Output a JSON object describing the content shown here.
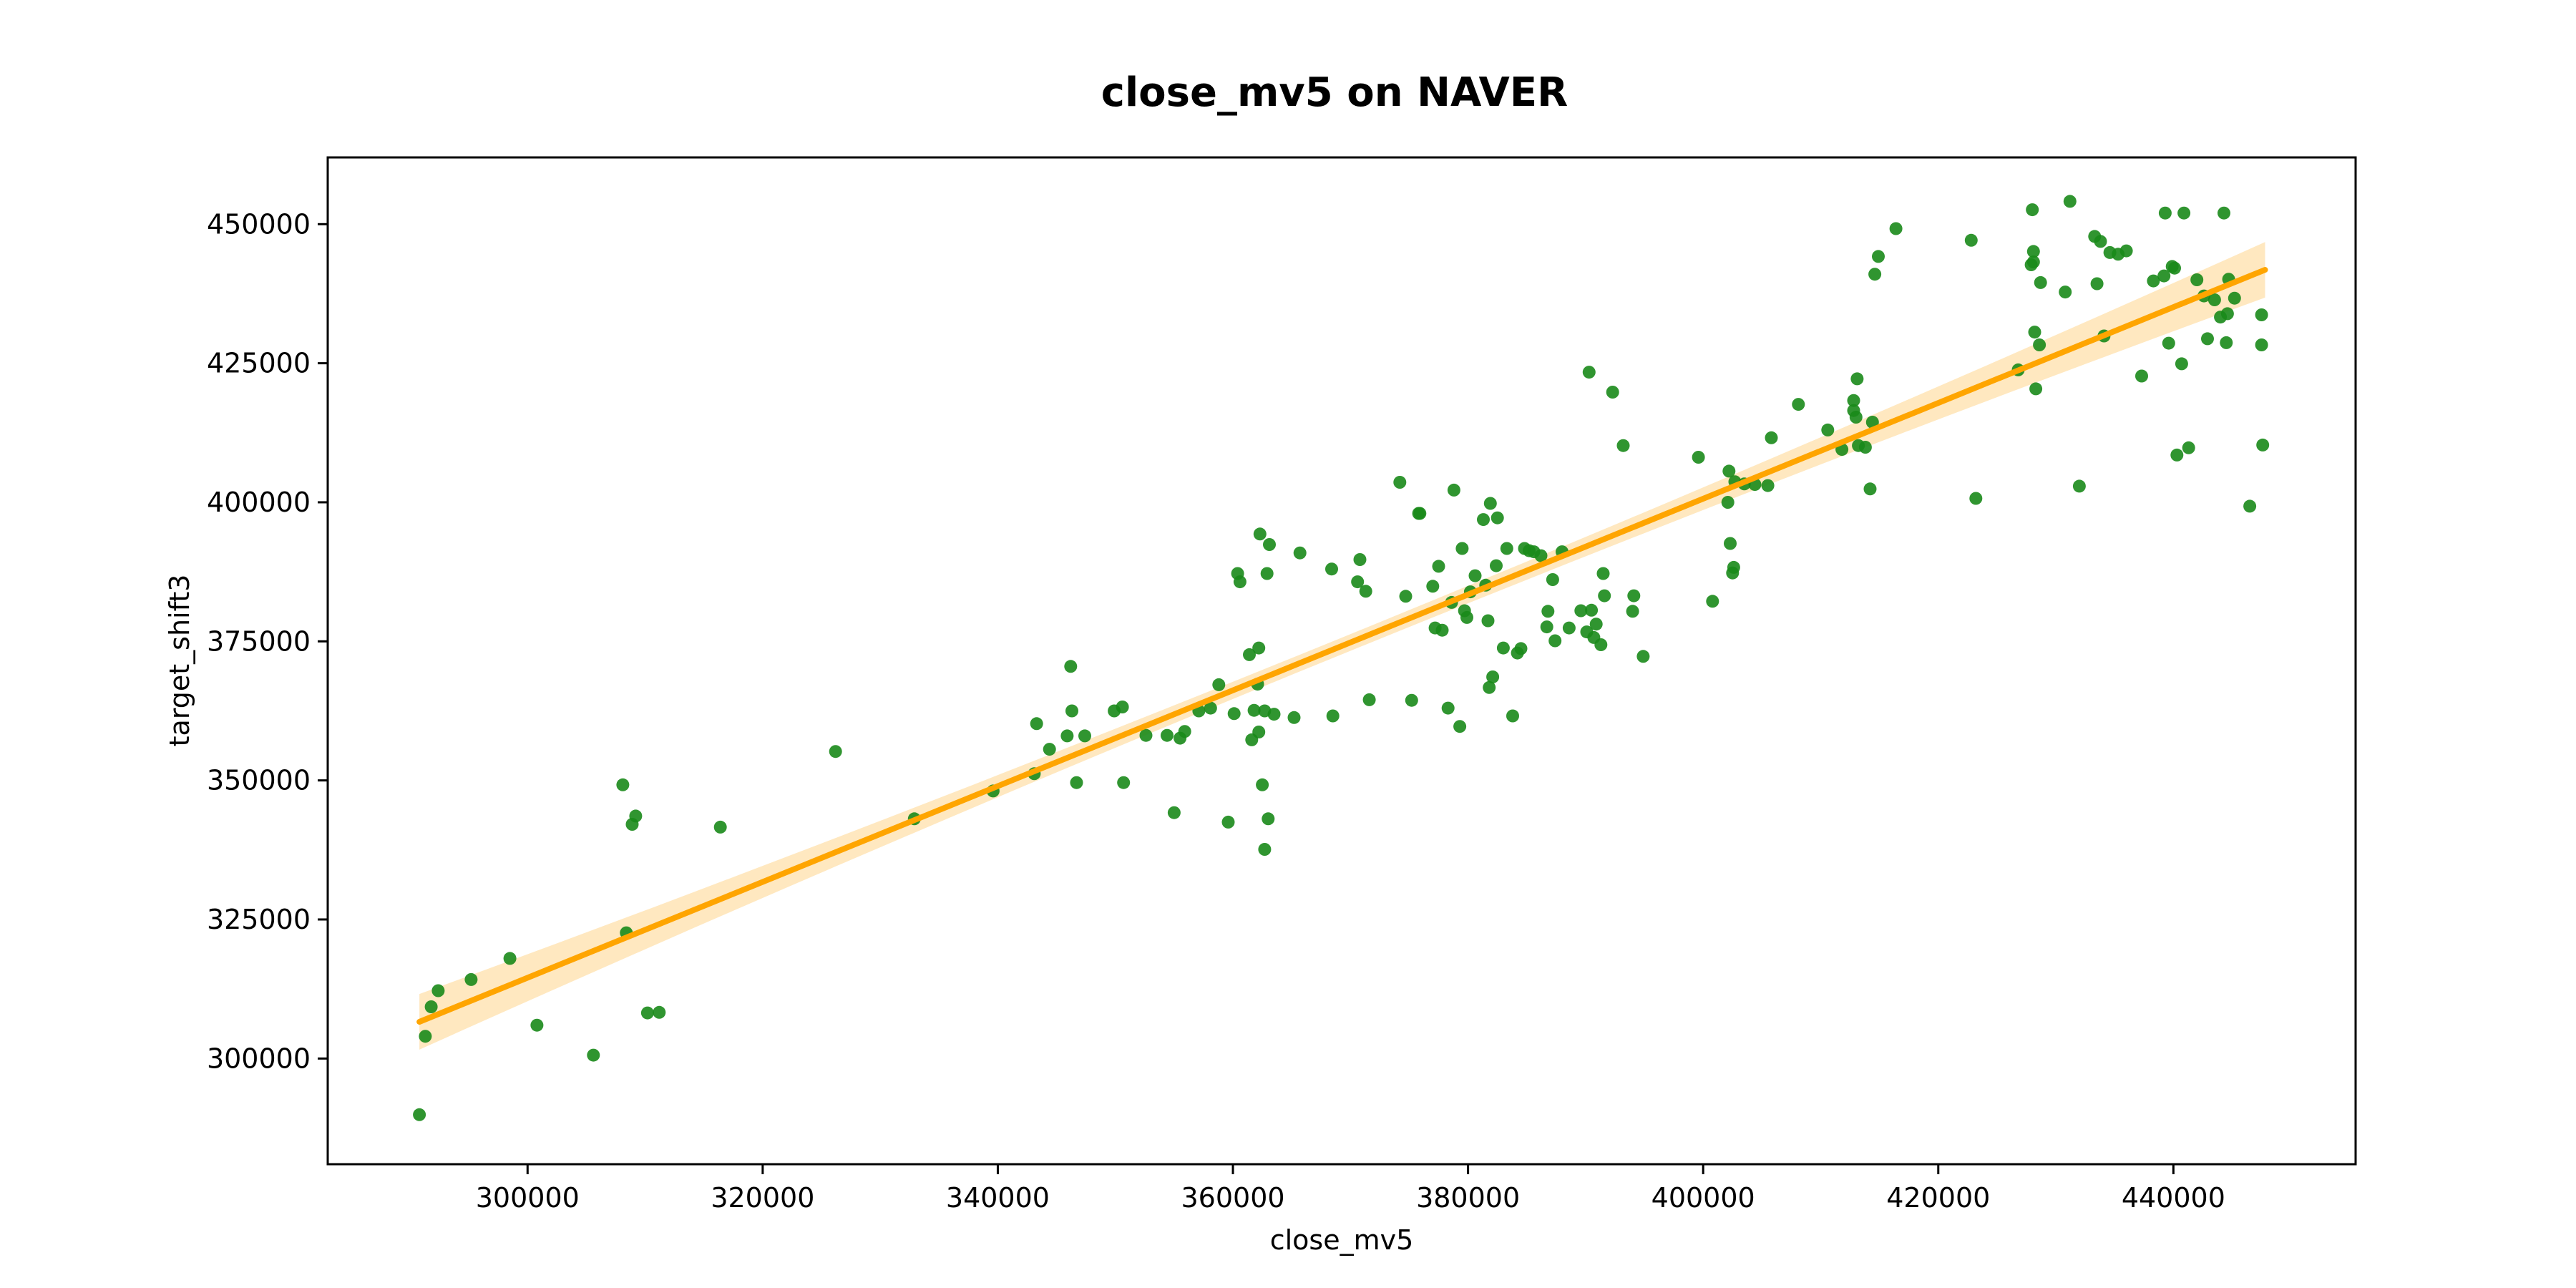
{
  "colors": {
    "points": "#1a8a1a",
    "regression_line": "#ffa500",
    "confidence_band": "#ffe2b0",
    "axes": "#000000",
    "background": "#ffffff"
  },
  "chart_data": {
    "type": "scatter",
    "title": "close_mv5 on NAVER",
    "xlabel": "close_mv5",
    "ylabel": "target_shift3",
    "xlim": [
      283000,
      455500
    ],
    "ylim": [
      281000,
      462000
    ],
    "xticks": [
      300000,
      320000,
      340000,
      360000,
      380000,
      400000,
      420000,
      440000
    ],
    "yticks": [
      300000,
      325000,
      350000,
      375000,
      400000,
      425000,
      450000
    ],
    "grid": false,
    "legend": "none",
    "regression": {
      "x_start": 290800,
      "y_start": 306600,
      "x_end": 447800,
      "y_end": 441800,
      "ci_half_width_ends": 5000,
      "ci_half_width_center": 1500
    },
    "series": [
      {
        "points": [
          [
            290800,
            289900
          ],
          [
            291300,
            304000
          ],
          [
            291800,
            309300
          ],
          [
            292400,
            312200
          ],
          [
            295200,
            314200
          ],
          [
            298500,
            318000
          ],
          [
            300800,
            306000
          ],
          [
            305600,
            300600
          ],
          [
            308100,
            349200
          ],
          [
            308400,
            322600
          ],
          [
            308900,
            342100
          ],
          [
            309200,
            343600
          ],
          [
            310200,
            308200
          ],
          [
            311200,
            308300
          ],
          [
            316400,
            341600
          ],
          [
            326200,
            355200
          ],
          [
            332900,
            343100
          ],
          [
            339600,
            348100
          ],
          [
            343100,
            351200
          ],
          [
            343300,
            360200
          ],
          [
            344400,
            355600
          ],
          [
            345900,
            358000
          ],
          [
            346200,
            370500
          ],
          [
            346300,
            362500
          ],
          [
            346700,
            349600
          ],
          [
            347400,
            358000
          ],
          [
            349900,
            362500
          ],
          [
            350600,
            363200
          ],
          [
            350700,
            349600
          ],
          [
            352600,
            358100
          ],
          [
            354400,
            358100
          ],
          [
            355000,
            344200
          ],
          [
            355500,
            357600
          ],
          [
            355900,
            358800
          ],
          [
            357100,
            362500
          ],
          [
            358100,
            363000
          ],
          [
            358800,
            367200
          ],
          [
            359600,
            342500
          ],
          [
            360100,
            362000
          ],
          [
            360400,
            387200
          ],
          [
            360600,
            385700
          ],
          [
            361400,
            372600
          ],
          [
            361600,
            357300
          ],
          [
            361800,
            362600
          ],
          [
            362100,
            367300
          ],
          [
            362200,
            358700
          ],
          [
            362200,
            373800
          ],
          [
            362300,
            394300
          ],
          [
            362500,
            349200
          ],
          [
            362700,
            362500
          ],
          [
            362700,
            337600
          ],
          [
            362900,
            387200
          ],
          [
            363000,
            343100
          ],
          [
            363100,
            392400
          ],
          [
            363500,
            361900
          ],
          [
            365200,
            361300
          ],
          [
            365700,
            390900
          ],
          [
            368400,
            388000
          ],
          [
            368500,
            361600
          ],
          [
            370600,
            385700
          ],
          [
            370800,
            389700
          ],
          [
            371300,
            384000
          ],
          [
            371600,
            364500
          ],
          [
            374200,
            403600
          ],
          [
            374700,
            383100
          ],
          [
            375200,
            364400
          ],
          [
            375800,
            398000
          ],
          [
            375900,
            398000
          ],
          [
            377000,
            384900
          ],
          [
            377200,
            377400
          ],
          [
            377500,
            388500
          ],
          [
            377800,
            377000
          ],
          [
            378300,
            363000
          ],
          [
            378600,
            382000
          ],
          [
            378800,
            402200
          ],
          [
            379300,
            359700
          ],
          [
            379500,
            391700
          ],
          [
            379700,
            380500
          ],
          [
            379900,
            379300
          ],
          [
            380200,
            383900
          ],
          [
            380600,
            386800
          ],
          [
            381300,
            396900
          ],
          [
            381500,
            385100
          ],
          [
            381700,
            378700
          ],
          [
            381800,
            366700
          ],
          [
            381900,
            399800
          ],
          [
            382100,
            368600
          ],
          [
            382400,
            388600
          ],
          [
            382500,
            397200
          ],
          [
            383000,
            373800
          ],
          [
            383300,
            391700
          ],
          [
            383800,
            361600
          ],
          [
            384200,
            372900
          ],
          [
            384500,
            373700
          ],
          [
            384800,
            391700
          ],
          [
            385200,
            391300
          ],
          [
            385600,
            391100
          ],
          [
            386200,
            390400
          ],
          [
            386700,
            377600
          ],
          [
            386800,
            380400
          ],
          [
            387200,
            386100
          ],
          [
            387400,
            375100
          ],
          [
            388000,
            391100
          ],
          [
            388600,
            377400
          ],
          [
            389600,
            380500
          ],
          [
            390100,
            376700
          ],
          [
            390300,
            423400
          ],
          [
            390500,
            380600
          ],
          [
            390700,
            375700
          ],
          [
            390900,
            378100
          ],
          [
            391300,
            374400
          ],
          [
            391500,
            387200
          ],
          [
            391600,
            383200
          ],
          [
            392300,
            419800
          ],
          [
            393200,
            410200
          ],
          [
            394000,
            380400
          ],
          [
            394100,
            383200
          ],
          [
            394900,
            372300
          ],
          [
            399600,
            408100
          ],
          [
            400800,
            382200
          ],
          [
            402100,
            400000
          ],
          [
            402200,
            405600
          ],
          [
            402300,
            392600
          ],
          [
            402500,
            387300
          ],
          [
            402600,
            388300
          ],
          [
            402700,
            403700
          ],
          [
            403500,
            403300
          ],
          [
            404400,
            403200
          ],
          [
            405500,
            403000
          ],
          [
            405800,
            411600
          ],
          [
            408100,
            417600
          ],
          [
            410600,
            413000
          ],
          [
            411800,
            409500
          ],
          [
            412800,
            418300
          ],
          [
            412800,
            416500
          ],
          [
            413000,
            415300
          ],
          [
            413100,
            422200
          ],
          [
            413200,
            410200
          ],
          [
            413800,
            409900
          ],
          [
            414200,
            402400
          ],
          [
            414400,
            414400
          ],
          [
            414600,
            441000
          ],
          [
            414900,
            444200
          ],
          [
            416400,
            449200
          ],
          [
            422800,
            447100
          ],
          [
            423200,
            400700
          ],
          [
            426800,
            423800
          ],
          [
            427900,
            442700
          ],
          [
            428000,
            452600
          ],
          [
            428100,
            445100
          ],
          [
            428100,
            443200
          ],
          [
            428200,
            430600
          ],
          [
            428300,
            420400
          ],
          [
            428600,
            428300
          ],
          [
            428700,
            439500
          ],
          [
            430800,
            437800
          ],
          [
            431200,
            454100
          ],
          [
            432000,
            402900
          ],
          [
            433300,
            447800
          ],
          [
            433500,
            439300
          ],
          [
            433800,
            446900
          ],
          [
            434100,
            429900
          ],
          [
            434600,
            444900
          ],
          [
            435300,
            444600
          ],
          [
            436000,
            445200
          ],
          [
            437300,
            422700
          ],
          [
            438300,
            439800
          ],
          [
            439200,
            440700
          ],
          [
            439300,
            452000
          ],
          [
            439600,
            428600
          ],
          [
            439900,
            442400
          ],
          [
            440100,
            442100
          ],
          [
            440300,
            408500
          ],
          [
            440700,
            424900
          ],
          [
            440900,
            452000
          ],
          [
            441300,
            409800
          ],
          [
            442000,
            440000
          ],
          [
            442600,
            437100
          ],
          [
            442900,
            429400
          ],
          [
            443500,
            436400
          ],
          [
            444000,
            433300
          ],
          [
            444300,
            452000
          ],
          [
            444500,
            428700
          ],
          [
            444600,
            433900
          ],
          [
            444700,
            440100
          ],
          [
            445200,
            436700
          ],
          [
            446500,
            399300
          ],
          [
            447500,
            433700
          ],
          [
            447500,
            428300
          ],
          [
            447600,
            410300
          ]
        ]
      }
    ]
  }
}
